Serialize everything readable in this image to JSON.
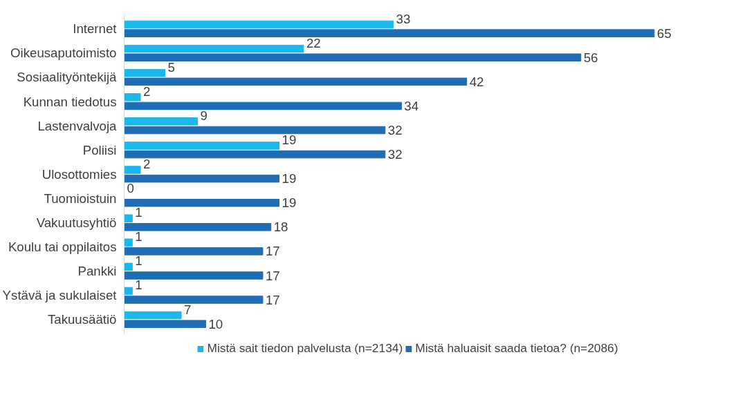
{
  "chart_data": {
    "type": "bar",
    "orientation": "horizontal",
    "categories": [
      "Internet",
      "Oikeusaputoimisto",
      "Sosiaalityöntekijä",
      "Kunnan tiedotus",
      "Lastenvalvoja",
      "Poliisi",
      "Ulosottomies",
      "Tuomioistuin",
      "Vakuutusyhtiö",
      "Koulu tai oppilaitos",
      "Pankki",
      "Ystävä ja sukulaiset",
      "Takuusäätiö"
    ],
    "series": [
      {
        "name": "Mistä sait tiedon palvelusta (n=2134)",
        "color": "#1cb7eb",
        "values": [
          33,
          22,
          5,
          2,
          9,
          19,
          2,
          0,
          1,
          1,
          1,
          1,
          7
        ]
      },
      {
        "name": "Mistä haluaisit saada tietoa? (n=2086)",
        "color": "#1f6db4",
        "values": [
          65,
          56,
          42,
          34,
          32,
          32,
          19,
          19,
          18,
          17,
          17,
          17,
          10
        ]
      }
    ],
    "data_labels": true,
    "legend": "bottom",
    "grid": false
  }
}
